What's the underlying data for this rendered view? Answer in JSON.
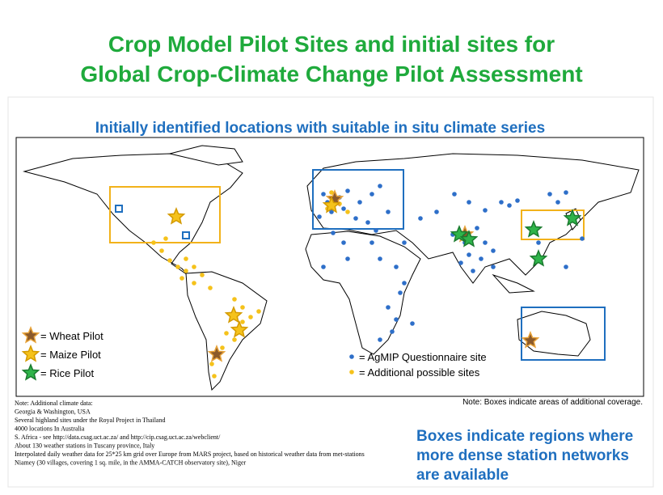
{
  "header": {
    "title_lines": [
      "Crop Model Pilot Sites and initial sites for",
      "Global Crop-Climate Change Pilot Assessment"
    ]
  },
  "map": {
    "subtitle": "Initially identified locations with suitable in situ climate series",
    "legend": [
      "= Wheat Pilot",
      "= Maize Pilot",
      "= Rice Pilot",
      "= AgMIP Questionnaire site",
      "= Additional possible sites"
    ],
    "box_note": "Note: Boxes indicate areas of additional coverage."
  },
  "notes": [
    "Note: Additional climate data:",
    "Georgia & Washington, USA",
    "Several highland sites under the Royal Project in Thailand",
    "4000 locations In Australia",
    "S. Africa - see http://data.csag.uct.ac.za/ and http://cip.csag.uct.ac.za/webclient/",
    "About 130 weather stations in Tuscany province, Italy",
    "Interpolated daily weather data for 25*25 km grid over Europe from MARS project, based on historical weather data from met-stations",
    "Niamey (30 villages, covering 1 sq. mile, in the AMMA-CATCH observatory site), Niger"
  ],
  "callout_lines": [
    "Boxes indicate regions where",
    "more dense station networks",
    "are available"
  ]
}
